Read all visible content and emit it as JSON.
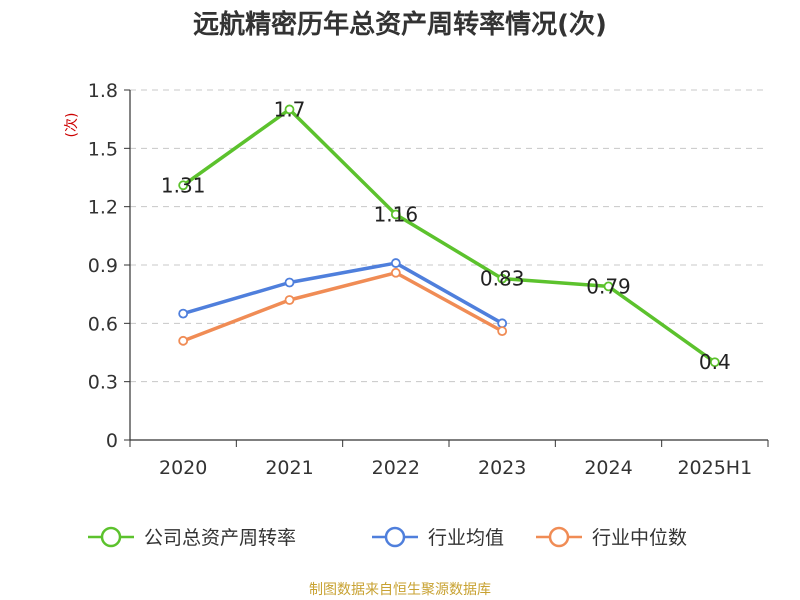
{
  "chart_data": {
    "type": "line",
    "title": "远航精密历年总资产周转率情况(次)",
    "ylabel": "(次)",
    "xlabel": "",
    "categories": [
      "2020",
      "2021",
      "2022",
      "2023",
      "2024",
      "2025H1"
    ],
    "yticks": [
      "0",
      "0.3",
      "0.6",
      "0.9",
      "1.2",
      "1.5",
      "1.8"
    ],
    "ylim": [
      0,
      1.8
    ],
    "grid": true,
    "legend_position": "bottom",
    "series": [
      {
        "name": "公司总资产周转率",
        "color": "#5cc22d",
        "values": [
          1.31,
          1.7,
          1.16,
          0.83,
          0.79,
          0.4
        ],
        "labels": [
          "1.31",
          "1.7",
          "1.16",
          "0.83",
          "0.79",
          "0.4"
        ]
      },
      {
        "name": "行业均值",
        "color": "#4f7fdc",
        "values": [
          0.65,
          0.81,
          0.91,
          0.6,
          null,
          null
        ]
      },
      {
        "name": "行业中位数",
        "color": "#f08c55",
        "values": [
          0.51,
          0.72,
          0.86,
          0.56,
          null,
          null
        ]
      }
    ]
  },
  "source": "制图数据来自恒生聚源数据库"
}
